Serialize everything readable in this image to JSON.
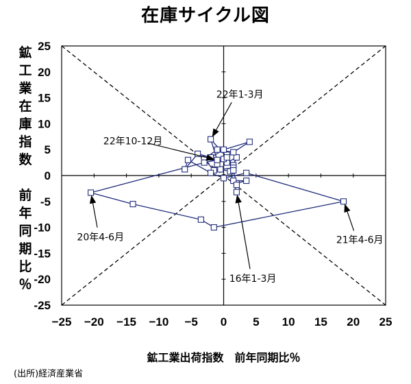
{
  "title": "在庫サイクル図",
  "source": "(出所)経済産業省",
  "chart_data": {
    "type": "scatter",
    "title": "在庫サイクル図",
    "xlabel": "鉱工業出荷指数　前年同期比％",
    "ylabel": [
      "鉱",
      "工",
      "業",
      "在",
      "庫",
      "指",
      "数",
      "",
      "前",
      "年",
      "同",
      "期",
      "比",
      "％"
    ],
    "xlim": [
      -25,
      25
    ],
    "ylim": [
      -25,
      25
    ],
    "x_ticks": [
      -25,
      -20,
      -15,
      -10,
      -5,
      0,
      5,
      10,
      15,
      20,
      25
    ],
    "y_ticks": [
      25,
      20,
      15,
      10,
      5,
      0,
      -5,
      -10,
      -15,
      -20,
      -25
    ],
    "x_tick_labels": [
      "−25",
      "−20",
      "−15",
      "−10",
      "−5",
      "0",
      "5",
      "10",
      "15",
      "20",
      "25"
    ],
    "y_tick_labels": [
      "25",
      "20",
      "15",
      "10",
      "5",
      "0",
      "-5",
      "-10",
      "-15",
      "-20",
      "-25"
    ],
    "reference_lines": [
      {
        "from": [
          -25,
          -25
        ],
        "to": [
          25,
          25
        ],
        "style": "dashed"
      },
      {
        "from": [
          -25,
          25
        ],
        "to": [
          25,
          -25
        ],
        "style": "dashed"
      }
    ],
    "line_color": "#1f2a7a",
    "marker": "square",
    "series": [
      {
        "points": [
          [
            2.0,
            -3.2
          ],
          [
            1.0,
            0.8
          ],
          [
            -0.5,
            1.2
          ],
          [
            0.5,
            2.5
          ],
          [
            2.0,
            3.5
          ],
          [
            1.5,
            2.0
          ],
          [
            0.0,
            3.2
          ],
          [
            -1.0,
            2.2
          ],
          [
            0.5,
            4.0
          ],
          [
            1.5,
            1.5
          ],
          [
            -1.5,
            1.0
          ],
          [
            -3.0,
            3.2
          ],
          [
            -1.0,
            5.0
          ],
          [
            1.5,
            4.5
          ],
          [
            4.0,
            6.5
          ],
          [
            0.0,
            5.0
          ],
          [
            -2.0,
            3.5
          ],
          [
            -4.0,
            4.2
          ],
          [
            -6.0,
            1.2
          ],
          [
            -5.5,
            3.0
          ],
          [
            -2.0,
            0.5
          ],
          [
            0.0,
            -0.5
          ],
          [
            3.5,
            0.5
          ],
          [
            18.5,
            -5.0
          ],
          [
            -1.5,
            -10.0
          ],
          [
            -3.5,
            -8.5
          ],
          [
            -14.0,
            -5.5
          ],
          [
            -20.5,
            -3.3
          ],
          [
            -3.0,
            2.5
          ],
          [
            -1.0,
            3.0
          ],
          [
            -2.0,
            7.0
          ],
          [
            0.5,
            3.5
          ],
          [
            1.5,
            1.0
          ],
          [
            2.0,
            -1.5
          ],
          [
            3.5,
            -1.0
          ],
          [
            1.5,
            -1.0
          ],
          [
            2.0,
            -1.8
          ]
        ]
      }
    ],
    "annotations": [
      {
        "text": "22年1-3月",
        "xy": [
          -2.0,
          7.0
        ],
        "text_at": [
          2.5,
          15.0
        ]
      },
      {
        "text": "22年10-12月",
        "xy": [
          -1.0,
          3.0
        ],
        "text_at": [
          -14.0,
          6.0
        ]
      },
      {
        "text": "20年4-6月",
        "xy": [
          -20.5,
          -3.3
        ],
        "text_at": [
          -19.0,
          -12.5
        ]
      },
      {
        "text": "21年4-6月",
        "xy": [
          18.5,
          -5.0
        ],
        "text_at": [
          21.0,
          -13.0
        ]
      },
      {
        "text": "16年1-3月",
        "xy": [
          2.0,
          -3.2
        ],
        "text_at": [
          4.5,
          -20.5
        ]
      }
    ]
  }
}
